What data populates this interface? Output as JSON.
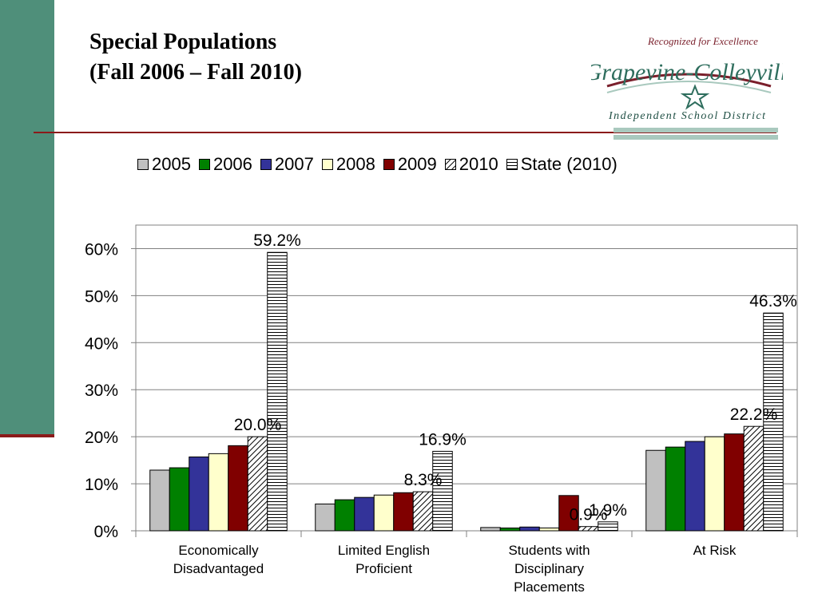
{
  "slide": {
    "title_line1": "Special Populations",
    "title_line2": "(Fall 2006 – Fall 2010)"
  },
  "logo": {
    "tagline": "Recognized for Excellence",
    "name": "Grapevine-Colleyville",
    "subtitle": "Independent School District"
  },
  "colors": {
    "sidebar": "#4f8f7a",
    "rule": "#8b1a1a"
  },
  "chart_data": {
    "type": "bar",
    "categories": [
      [
        "Economically",
        "Disadvantaged"
      ],
      [
        "Limited English",
        "Proficient"
      ],
      [
        "Students with",
        "Disciplinary",
        "Placements"
      ],
      [
        "At Risk"
      ]
    ],
    "series": [
      {
        "name": "2005",
        "fill": "#c0c0c0",
        "pattern": "solid",
        "values": [
          12.9,
          5.7,
          0.7,
          17.1
        ]
      },
      {
        "name": "2006",
        "fill": "#008000",
        "pattern": "solid",
        "values": [
          13.4,
          6.6,
          0.6,
          17.8
        ]
      },
      {
        "name": "2007",
        "fill": "#333399",
        "pattern": "solid",
        "values": [
          15.7,
          7.1,
          0.8,
          19.0
        ]
      },
      {
        "name": "2008",
        "fill": "#ffffcc",
        "pattern": "solid",
        "values": [
          16.4,
          7.6,
          0.6,
          20.0
        ]
      },
      {
        "name": "2009",
        "fill": "#800000",
        "pattern": "solid",
        "values": [
          18.1,
          8.1,
          7.5,
          20.6
        ]
      },
      {
        "name": "2010",
        "fill": "#ffffff",
        "pattern": "diagonal",
        "values": [
          20.0,
          8.3,
          0.9,
          22.2
        ]
      },
      {
        "name": "State (2010)",
        "fill": "#ffffff",
        "pattern": "horizontal",
        "values": [
          59.2,
          16.9,
          1.9,
          46.3
        ]
      }
    ],
    "data_labels": [
      {
        "series": 5,
        "category": 0,
        "text": "20.0%"
      },
      {
        "series": 6,
        "category": 0,
        "text": "59.2%"
      },
      {
        "series": 5,
        "category": 1,
        "text": "8.3%"
      },
      {
        "series": 6,
        "category": 1,
        "text": "16.9%"
      },
      {
        "series": 5,
        "category": 2,
        "text": "0.9%"
      },
      {
        "series": 6,
        "category": 2,
        "text": "1.9%"
      },
      {
        "series": 5,
        "category": 3,
        "text": "22.2%"
      },
      {
        "series": 6,
        "category": 3,
        "text": "46.3%"
      }
    ],
    "y_ticks": [
      "0%",
      "10%",
      "20%",
      "30%",
      "40%",
      "50%",
      "60%"
    ],
    "ylim": [
      0,
      65
    ],
    "grid": true,
    "legend_position": "top"
  }
}
